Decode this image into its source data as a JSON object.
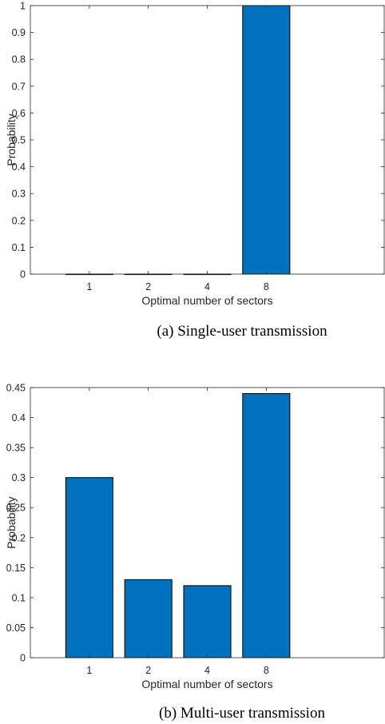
{
  "colors": {
    "bar": "#0072BD",
    "axis": "#262626",
    "background": "#ffffff"
  },
  "chart_data": [
    {
      "type": "bar",
      "categories": [
        "1",
        "2",
        "4",
        "8"
      ],
      "values": [
        0,
        0,
        0,
        1
      ],
      "xlabel": "Optimal number of sectors",
      "ylabel": "Probability",
      "ylim": [
        0,
        1
      ],
      "yticks": [
        0,
        0.1,
        0.2,
        0.3,
        0.4,
        0.5,
        0.6,
        0.7,
        0.8,
        0.9,
        1
      ],
      "ytick_labels": [
        "0",
        "0.1",
        "0.2",
        "0.3",
        "0.4",
        "0.5",
        "0.6",
        "0.7",
        "0.8",
        "0.9",
        "1"
      ],
      "grid": false,
      "caption": "(a)  Single-user transmission"
    },
    {
      "type": "bar",
      "categories": [
        "1",
        "2",
        "4",
        "8"
      ],
      "values": [
        0.3,
        0.13,
        0.12,
        0.44
      ],
      "xlabel": "Optimal number of sectors",
      "ylabel": "Probability",
      "ylim": [
        0,
        0.45
      ],
      "yticks": [
        0,
        0.05,
        0.1,
        0.15,
        0.2,
        0.25,
        0.3,
        0.35,
        0.4,
        0.45
      ],
      "ytick_labels": [
        "0",
        "0.05",
        "0.1",
        "0.15",
        "0.2",
        "0.25",
        "0.3",
        "0.35",
        "0.4",
        "0.45"
      ],
      "grid": false,
      "caption": "(b)  Multi-user transmission"
    }
  ]
}
